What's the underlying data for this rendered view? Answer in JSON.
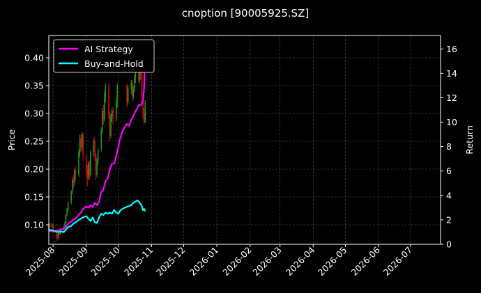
{
  "chart_data": {
    "type": "line",
    "title": "cnoption [90005925.SZ]",
    "ylabel_left": "Price",
    "ylabel_right": "Return",
    "ylim_left": [
      0.065,
      0.44
    ],
    "ylim_right": [
      0,
      17.1
    ],
    "xlim": [
      "2025-07-28",
      "2026-07-29"
    ],
    "grid": true,
    "legend_position": "top-left",
    "x_ticks": [
      "2025-08",
      "2025-09",
      "2025-10",
      "2025-11",
      "2025-12",
      "2026-01",
      "2026-02",
      "2026-03",
      "2026-04",
      "2026-05",
      "2026-06",
      "2026-07"
    ],
    "y_ticks_left": [
      "0.10",
      "0.15",
      "0.20",
      "0.25",
      "0.30",
      "0.35",
      "0.40"
    ],
    "y_ticks_right": [
      "0",
      "2",
      "4",
      "6",
      "8",
      "10",
      "12",
      "14",
      "16"
    ],
    "series": [
      {
        "name": "AI Strategy",
        "color": "#ff00ff",
        "axis": "right",
        "points": [
          [
            "2025-07-28",
            1.1
          ],
          [
            "2025-08-02",
            1.05
          ],
          [
            "2025-08-04",
            1.15
          ],
          [
            "2025-08-06",
            1.13
          ],
          [
            "2025-08-08",
            1.2
          ],
          [
            "2025-08-11",
            1.26
          ],
          [
            "2025-08-13",
            1.45
          ],
          [
            "2025-08-15",
            1.7
          ],
          [
            "2025-08-18",
            1.85
          ],
          [
            "2025-08-20",
            2.0
          ],
          [
            "2025-08-22",
            2.1
          ],
          [
            "2025-08-25",
            2.4
          ],
          [
            "2025-08-27",
            2.6
          ],
          [
            "2025-08-29",
            2.9
          ],
          [
            "2025-09-01",
            3.1
          ],
          [
            "2025-09-03",
            3.0
          ],
          [
            "2025-09-05",
            3.2
          ],
          [
            "2025-09-07",
            3.05
          ],
          [
            "2025-09-09",
            3.4
          ],
          [
            "2025-09-11",
            3.2
          ],
          [
            "2025-09-13",
            3.5
          ],
          [
            "2025-09-15",
            4.3
          ],
          [
            "2025-09-17",
            4.45
          ],
          [
            "2025-09-19",
            5.2
          ],
          [
            "2025-09-21",
            5.4
          ],
          [
            "2025-09-23",
            6.1
          ],
          [
            "2025-09-25",
            6.6
          ],
          [
            "2025-09-27",
            6.6
          ],
          [
            "2025-09-29",
            7.2
          ],
          [
            "2025-10-01",
            8.0
          ],
          [
            "2025-10-03",
            8.8
          ],
          [
            "2025-10-05",
            9.3
          ],
          [
            "2025-10-07",
            9.6
          ],
          [
            "2025-10-09",
            9.85
          ],
          [
            "2025-10-11",
            9.7
          ],
          [
            "2025-10-13",
            10.2
          ],
          [
            "2025-10-15",
            10.5
          ],
          [
            "2025-10-17",
            10.9
          ],
          [
            "2025-10-19",
            11.2
          ],
          [
            "2025-10-20",
            11.4
          ],
          [
            "2025-10-22",
            11.4
          ],
          [
            "2025-10-24",
            11.7
          ],
          [
            "2025-10-25",
            12.8
          ],
          [
            "2025-10-26",
            16.2
          ]
        ]
      },
      {
        "name": "Buy-and-Hold",
        "color": "#00ffff",
        "axis": "right",
        "points": [
          [
            "2025-07-28",
            1.2
          ],
          [
            "2025-08-02",
            1.1
          ],
          [
            "2025-08-05",
            1.0
          ],
          [
            "2025-08-08",
            1.05
          ],
          [
            "2025-08-11",
            1.0
          ],
          [
            "2025-08-13",
            1.2
          ],
          [
            "2025-08-15",
            1.4
          ],
          [
            "2025-08-18",
            1.5
          ],
          [
            "2025-08-20",
            1.7
          ],
          [
            "2025-08-22",
            1.8
          ],
          [
            "2025-08-25",
            2.0
          ],
          [
            "2025-08-27",
            2.1
          ],
          [
            "2025-08-29",
            2.2
          ],
          [
            "2025-09-01",
            2.3
          ],
          [
            "2025-09-03",
            2.1
          ],
          [
            "2025-09-05",
            1.9
          ],
          [
            "2025-09-07",
            2.2
          ],
          [
            "2025-09-09",
            1.8
          ],
          [
            "2025-09-11",
            1.75
          ],
          [
            "2025-09-13",
            2.2
          ],
          [
            "2025-09-15",
            2.5
          ],
          [
            "2025-09-17",
            2.4
          ],
          [
            "2025-09-19",
            2.6
          ],
          [
            "2025-09-21",
            2.5
          ],
          [
            "2025-09-23",
            2.6
          ],
          [
            "2025-09-25",
            2.5
          ],
          [
            "2025-09-27",
            2.8
          ],
          [
            "2025-09-29",
            2.6
          ],
          [
            "2025-10-01",
            2.5
          ],
          [
            "2025-10-03",
            2.8
          ],
          [
            "2025-10-05",
            2.9
          ],
          [
            "2025-10-07",
            3.0
          ],
          [
            "2025-10-10",
            3.1
          ],
          [
            "2025-10-13",
            3.2
          ],
          [
            "2025-10-15",
            3.4
          ],
          [
            "2025-10-17",
            3.5
          ],
          [
            "2025-10-19",
            3.6
          ],
          [
            "2025-10-21",
            3.4
          ],
          [
            "2025-10-23",
            3.1
          ],
          [
            "2025-10-24",
            2.8
          ],
          [
            "2025-10-25",
            2.9
          ],
          [
            "2025-10-26",
            2.7
          ]
        ]
      }
    ],
    "candles": [
      [
        "2025-07-28",
        0.091,
        0.1,
        0.09,
        0.101,
        "up"
      ],
      [
        "2025-07-29",
        0.098,
        0.097,
        0.095,
        0.104,
        "down"
      ],
      [
        "2025-07-31",
        0.097,
        0.102,
        0.095,
        0.104,
        "up"
      ],
      [
        "2025-08-01",
        0.1,
        0.088,
        0.085,
        0.101,
        "down"
      ],
      [
        "2025-08-04",
        0.088,
        0.081,
        0.075,
        0.092,
        "down"
      ],
      [
        "2025-08-05",
        0.081,
        0.078,
        0.07,
        0.084,
        "down"
      ],
      [
        "2025-08-06",
        0.078,
        0.086,
        0.074,
        0.088,
        "up"
      ],
      [
        "2025-08-07",
        0.086,
        0.083,
        0.081,
        0.089,
        "down"
      ],
      [
        "2025-08-08",
        0.083,
        0.092,
        0.082,
        0.094,
        "up"
      ],
      [
        "2025-08-11",
        0.092,
        0.096,
        0.09,
        0.098,
        "up"
      ],
      [
        "2025-08-12",
        0.096,
        0.103,
        0.094,
        0.106,
        "up"
      ],
      [
        "2025-08-13",
        0.103,
        0.118,
        0.101,
        0.12,
        "up"
      ],
      [
        "2025-08-14",
        0.118,
        0.128,
        0.115,
        0.13,
        "up"
      ],
      [
        "2025-08-15",
        0.128,
        0.14,
        0.124,
        0.142,
        "up"
      ],
      [
        "2025-08-18",
        0.14,
        0.16,
        0.136,
        0.162,
        "up"
      ],
      [
        "2025-08-19",
        0.16,
        0.18,
        0.155,
        0.185,
        "up"
      ],
      [
        "2025-08-20",
        0.18,
        0.175,
        0.165,
        0.19,
        "down"
      ],
      [
        "2025-08-21",
        0.175,
        0.198,
        0.17,
        0.2,
        "up"
      ],
      [
        "2025-08-22",
        0.198,
        0.19,
        0.18,
        0.205,
        "down"
      ],
      [
        "2025-08-25",
        0.19,
        0.23,
        0.186,
        0.235,
        "up"
      ],
      [
        "2025-08-26",
        0.23,
        0.255,
        0.222,
        0.262,
        "up"
      ],
      [
        "2025-08-27",
        0.255,
        0.24,
        0.23,
        0.262,
        "down"
      ],
      [
        "2025-08-28",
        0.24,
        0.262,
        0.234,
        0.266,
        "up"
      ],
      [
        "2025-08-29",
        0.262,
        0.225,
        0.215,
        0.266,
        "down"
      ],
      [
        "2025-09-01",
        0.225,
        0.2,
        0.185,
        0.228,
        "down"
      ],
      [
        "2025-09-02",
        0.2,
        0.185,
        0.17,
        0.208,
        "down"
      ],
      [
        "2025-09-03",
        0.185,
        0.21,
        0.18,
        0.214,
        "up"
      ],
      [
        "2025-09-04",
        0.21,
        0.19,
        0.18,
        0.216,
        "down"
      ],
      [
        "2025-09-05",
        0.19,
        0.23,
        0.185,
        0.234,
        "up"
      ],
      [
        "2025-09-08",
        0.23,
        0.25,
        0.222,
        0.255,
        "up"
      ],
      [
        "2025-09-09",
        0.25,
        0.225,
        0.215,
        0.258,
        "down"
      ],
      [
        "2025-09-10",
        0.225,
        0.19,
        0.18,
        0.228,
        "down"
      ],
      [
        "2025-09-11",
        0.19,
        0.215,
        0.185,
        0.22,
        "up"
      ],
      [
        "2025-09-12",
        0.215,
        0.235,
        0.208,
        0.238,
        "up"
      ],
      [
        "2025-09-15",
        0.235,
        0.27,
        0.23,
        0.275,
        "up"
      ],
      [
        "2025-09-16",
        0.27,
        0.305,
        0.262,
        0.31,
        "up"
      ],
      [
        "2025-09-17",
        0.305,
        0.29,
        0.28,
        0.315,
        "down"
      ],
      [
        "2025-09-18",
        0.29,
        0.335,
        0.285,
        0.34,
        "up"
      ],
      [
        "2025-09-19",
        0.335,
        0.35,
        0.32,
        0.355,
        "up"
      ],
      [
        "2025-09-22",
        0.35,
        0.3,
        0.29,
        0.355,
        "down"
      ],
      [
        "2025-09-23",
        0.3,
        0.26,
        0.25,
        0.305,
        "down"
      ],
      [
        "2025-09-24",
        0.26,
        0.295,
        0.255,
        0.3,
        "up"
      ],
      [
        "2025-09-25",
        0.295,
        0.305,
        0.285,
        0.31,
        "up"
      ],
      [
        "2025-09-26",
        0.305,
        0.29,
        0.28,
        0.312,
        "down"
      ],
      [
        "2025-09-29",
        0.29,
        0.32,
        0.285,
        0.325,
        "up"
      ],
      [
        "2025-09-30",
        0.32,
        0.35,
        0.31,
        0.355,
        "up"
      ],
      [
        "2025-10-09",
        0.35,
        0.32,
        0.31,
        0.355,
        "down"
      ],
      [
        "2025-10-10",
        0.32,
        0.345,
        0.315,
        0.35,
        "up"
      ],
      [
        "2025-10-13",
        0.345,
        0.355,
        0.335,
        0.36,
        "up"
      ],
      [
        "2025-10-14",
        0.355,
        0.33,
        0.32,
        0.36,
        "down"
      ],
      [
        "2025-10-15",
        0.33,
        0.345,
        0.325,
        0.35,
        "up"
      ],
      [
        "2025-10-16",
        0.345,
        0.365,
        0.338,
        0.37,
        "up"
      ],
      [
        "2025-10-17",
        0.365,
        0.375,
        0.355,
        0.38,
        "up"
      ],
      [
        "2025-10-20",
        0.375,
        0.36,
        0.355,
        0.385,
        "down"
      ],
      [
        "2025-10-21",
        0.36,
        0.395,
        0.355,
        0.4,
        "up"
      ],
      [
        "2025-10-22",
        0.395,
        0.37,
        0.36,
        0.4,
        "down"
      ],
      [
        "2025-10-23",
        0.37,
        0.33,
        0.32,
        0.375,
        "down"
      ],
      [
        "2025-10-24",
        0.33,
        0.3,
        0.29,
        0.335,
        "down"
      ],
      [
        "2025-10-25",
        0.3,
        0.285,
        0.28,
        0.31,
        "down"
      ],
      [
        "2025-10-26",
        0.285,
        0.32,
        0.282,
        0.325,
        "up"
      ]
    ]
  }
}
